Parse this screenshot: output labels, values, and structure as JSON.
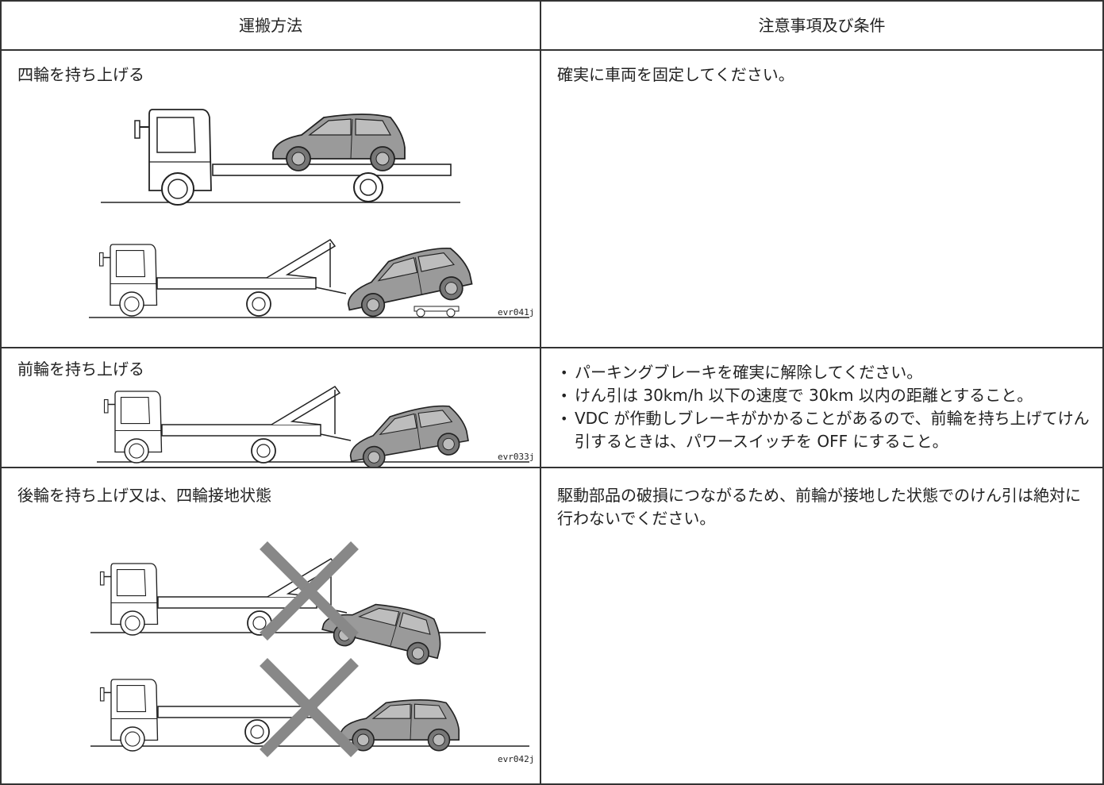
{
  "table": {
    "header": [
      "運搬方法",
      "注意事項及び条件"
    ],
    "rows": [
      {
        "method": "四輪を持ち上げる",
        "figure_code": "evr041j",
        "conditions": [
          "確実に車両を固定してください。"
        ]
      },
      {
        "method": "前輪を持ち上げる",
        "figure_code": "evr033j",
        "conditions": [
          "パーキングブレーキを確実に解除してください。",
          "けん引は 30km/h 以下の速度で 30km 以内の距離とすること。",
          "VDC が作動しブレーキがかかることがあるので、前輪を持ち上げてけん引するときは、パワースイッチを OFF にすること。"
        ]
      },
      {
        "method": "後輪を持ち上げ又は、四輪接地状態",
        "figure_code": "evr042j",
        "conditions": [
          "駆動部品の破損につながるため、前輪が接地した状態でのけん引は絶対に行わないでください。"
        ]
      }
    ]
  }
}
